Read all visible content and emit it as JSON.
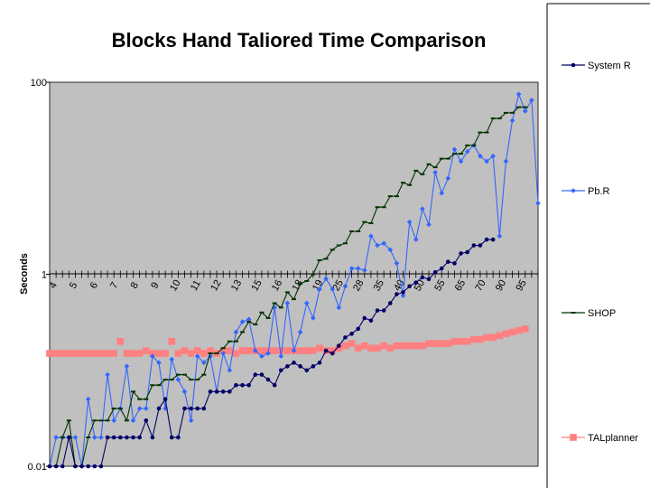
{
  "chart_data": {
    "type": "line",
    "title": "Blocks Hand Taliored Time Comparison",
    "ylabel": "Seconds",
    "xlabel": "",
    "yscale": "log",
    "ylim": [
      0.01,
      100
    ],
    "y_ticks": [
      "100",
      "1",
      "0.01"
    ],
    "x_ticks": [
      "4",
      "5",
      "6",
      "7",
      "8",
      "9",
      "10",
      "11",
      "12",
      "13",
      "15",
      "16",
      "18",
      "19",
      "25",
      "28",
      "35",
      "40",
      "50",
      "55",
      "65",
      "70",
      "90",
      "95"
    ],
    "legend_position": "right",
    "grid": false,
    "plot_background": "#c0c0c0",
    "series": [
      {
        "name": "System R",
        "color": "#000066",
        "marker": "circle",
        "values": [
          0.01,
          0.01,
          0.01,
          0.02,
          0.01,
          0.01,
          0.01,
          0.01,
          0.01,
          0.02,
          0.02,
          0.02,
          0.02,
          0.02,
          0.02,
          0.03,
          0.02,
          0.04,
          0.05,
          0.02,
          0.02,
          0.04,
          0.04,
          0.04,
          0.04,
          0.06,
          0.06,
          0.06,
          0.06,
          0.07,
          0.07,
          0.07,
          0.09,
          0.09,
          0.08,
          0.07,
          0.1,
          0.11,
          0.12,
          0.11,
          0.1,
          0.11,
          0.12,
          0.16,
          0.15,
          0.18,
          0.22,
          0.24,
          0.27,
          0.35,
          0.33,
          0.42,
          0.42,
          0.5,
          0.62,
          0.65,
          0.75,
          0.82,
          0.93,
          0.89,
          1.05,
          1.15,
          1.35,
          1.3,
          1.65,
          1.7,
          2.0,
          2.0,
          2.3,
          2.3
        ]
      },
      {
        "name": "Pb.R",
        "color": "#3366ff",
        "marker": "diamond",
        "values": [
          0.01,
          0.02,
          0.02,
          0.02,
          0.02,
          0.01,
          0.05,
          0.02,
          0.02,
          0.09,
          0.03,
          0.04,
          0.11,
          0.03,
          0.04,
          0.04,
          0.14,
          0.12,
          0.04,
          0.13,
          0.08,
          0.06,
          0.03,
          0.14,
          0.12,
          0.14,
          0.06,
          0.15,
          0.1,
          0.25,
          0.32,
          0.34,
          0.16,
          0.14,
          0.15,
          0.45,
          0.14,
          0.5,
          0.16,
          0.25,
          0.5,
          0.35,
          0.7,
          0.9,
          0.7,
          0.45,
          0.75,
          1.15,
          1.15,
          1.1,
          2.5,
          2.0,
          2.1,
          1.8,
          1.3,
          0.6,
          3.5,
          2.3,
          4.8,
          3.3,
          11.5,
          7.0,
          10.0,
          20.0,
          15.0,
          19.0,
          22.0,
          17.0,
          15.0,
          17.0,
          2.5,
          15.0,
          40.0,
          75.0,
          50.0,
          65.0,
          5.5
        ]
      },
      {
        "name": "SHOP",
        "color": "#003300",
        "marker": "dash",
        "values": [
          0.01,
          0.01,
          0.02,
          0.03,
          0.01,
          0.01,
          0.02,
          0.03,
          0.03,
          0.03,
          0.04,
          0.04,
          0.03,
          0.06,
          0.05,
          0.05,
          0.07,
          0.07,
          0.08,
          0.08,
          0.09,
          0.09,
          0.08,
          0.08,
          0.09,
          0.15,
          0.15,
          0.17,
          0.2,
          0.2,
          0.25,
          0.32,
          0.3,
          0.4,
          0.35,
          0.5,
          0.45,
          0.65,
          0.55,
          0.8,
          0.85,
          1.0,
          1.4,
          1.45,
          1.8,
          2.0,
          2.1,
          2.8,
          2.8,
          3.5,
          3.4,
          5.0,
          5.0,
          6.5,
          6.5,
          9.0,
          8.5,
          12.0,
          11.0,
          14.0,
          13.0,
          16.0,
          16.0,
          18.0,
          18.0,
          22.0,
          22.0,
          30.0,
          30.0,
          42.0,
          42.0,
          48.0,
          48.0,
          55.0,
          55.0
        ]
      },
      {
        "name": "TALplanner",
        "color": "#ff8080",
        "marker": "square",
        "values": [
          0.15,
          0.15,
          0.15,
          0.15,
          0.15,
          0.15,
          0.15,
          0.15,
          0.15,
          0.15,
          0.15,
          0.2,
          0.15,
          0.15,
          0.15,
          0.16,
          0.15,
          0.15,
          0.15,
          0.2,
          0.15,
          0.16,
          0.15,
          0.16,
          0.15,
          0.16,
          0.15,
          0.16,
          0.16,
          0.15,
          0.16,
          0.16,
          0.16,
          0.16,
          0.16,
          0.16,
          0.16,
          0.16,
          0.16,
          0.16,
          0.16,
          0.16,
          0.17,
          0.16,
          0.16,
          0.17,
          0.18,
          0.19,
          0.17,
          0.18,
          0.17,
          0.17,
          0.18,
          0.17,
          0.18,
          0.18,
          0.18,
          0.18,
          0.18,
          0.19,
          0.19,
          0.19,
          0.19,
          0.2,
          0.2,
          0.2,
          0.21,
          0.21,
          0.22,
          0.22,
          0.23,
          0.24,
          0.25,
          0.26,
          0.27
        ]
      }
    ]
  }
}
